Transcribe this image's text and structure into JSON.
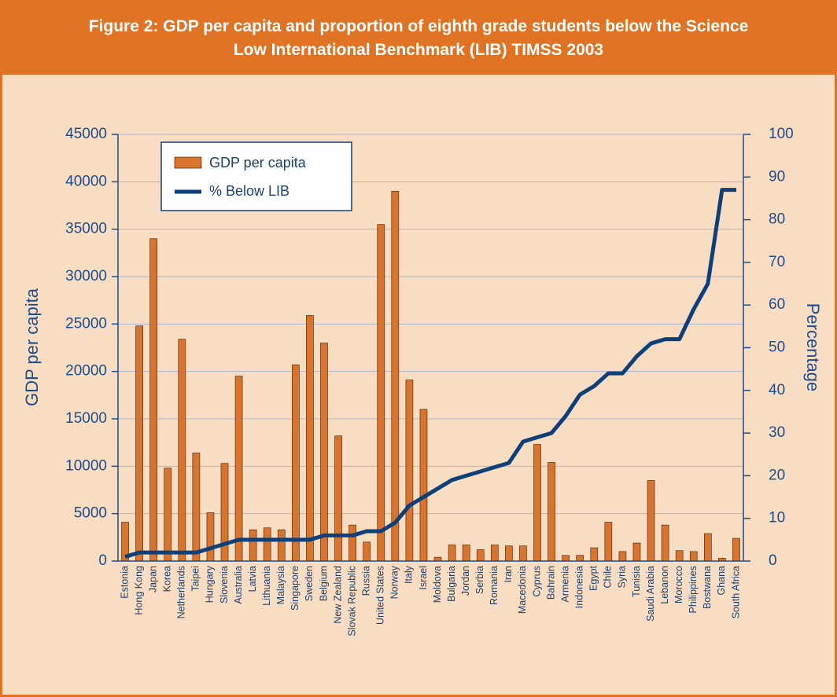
{
  "chart_data": {
    "type": "bar",
    "title": "Figure 2: GDP per capita and proportion of eighth grade students below the Science Low International Benchmark (LIB) TIMSS 2003",
    "ylabel": "GDP per capita",
    "y2label": "Percentage",
    "categories": [
      "Estonia",
      "Hong Kong",
      "Japan",
      "Korea",
      "Netherlands",
      "Taipei",
      "Hungary",
      "Slovenia",
      "Australia",
      "Latvia",
      "Lithuania",
      "Malaysia",
      "Singapore",
      "Sweden",
      "Belgium",
      "New Zealand",
      "Slovak Republic",
      "Russia",
      "United States",
      "Norway",
      "Italy",
      "Israel",
      "Moldova",
      "Bulgaria",
      "Jordan",
      "Serbia",
      "Romania",
      "Iran",
      "Macedonia",
      "Cyprus",
      "Bahrain",
      "Armenia",
      "Indonesia",
      "Egypt",
      "Chile",
      "Syria",
      "Tunisia",
      "Saudi Arabia",
      "Lebanon",
      "Morocco",
      "Philippines",
      "Bostwana",
      "Ghana",
      "South Africa"
    ],
    "series": [
      {
        "name": "GDP per capita",
        "type": "bar",
        "color": "#d9742e",
        "values": [
          4100,
          24800,
          34000,
          9800,
          23400,
          11400,
          5100,
          10300,
          19500,
          3300,
          3500,
          3300,
          20700,
          25900,
          23000,
          13200,
          3800,
          2000,
          35500,
          39000,
          19100,
          16000,
          400,
          1700,
          1700,
          1200,
          1700,
          1600,
          1600,
          12300,
          10400,
          600,
          600,
          1400,
          4100,
          1000,
          1900,
          8500,
          3800,
          1100,
          1000,
          2900,
          300,
          2400
        ]
      },
      {
        "name": "% Below LIB",
        "type": "line",
        "axis": "y2",
        "color": "#0d3f7a",
        "values": [
          1,
          2,
          2,
          2,
          2,
          2,
          3,
          4,
          5,
          5,
          5,
          5,
          5,
          5,
          6,
          6,
          6,
          7,
          7,
          9,
          13,
          15,
          17,
          19,
          20,
          21,
          22,
          23,
          28,
          29,
          30,
          34,
          39,
          41,
          44,
          44,
          48,
          51,
          52,
          52,
          59,
          65,
          87,
          87
        ]
      }
    ],
    "ylim": [
      0,
      45000
    ],
    "yticks": [
      0,
      5000,
      10000,
      15000,
      20000,
      25000,
      30000,
      35000,
      40000,
      45000
    ],
    "y2lim": [
      0,
      100
    ],
    "y2ticks": [
      0,
      10,
      20,
      30,
      40,
      50,
      60,
      70,
      80,
      90,
      100
    ],
    "grid": true
  }
}
